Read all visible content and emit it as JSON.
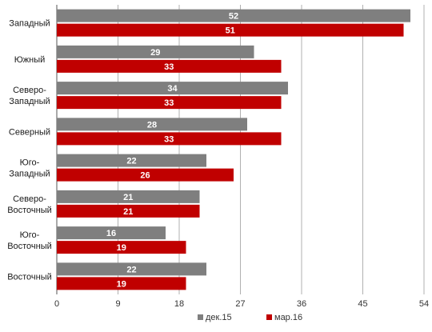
{
  "chart_data": {
    "type": "bar",
    "orientation": "horizontal",
    "categories": [
      [
        "Западный"
      ],
      [
        "Южный"
      ],
      [
        "Северо-",
        "Западный"
      ],
      [
        "Северный"
      ],
      [
        "Юго-",
        "Западный"
      ],
      [
        "Северо-",
        "Восточный"
      ],
      [
        "Юго-",
        "Восточный"
      ],
      [
        "Восточный"
      ]
    ],
    "series": [
      {
        "name": "дек.15",
        "color": "#7f7f7f",
        "values": [
          52,
          29,
          34,
          28,
          22,
          21,
          16,
          22
        ]
      },
      {
        "name": "мар.16",
        "color": "#c00000",
        "values": [
          51,
          33,
          33,
          33,
          26,
          21,
          19,
          19
        ]
      }
    ],
    "xlim": [
      0,
      54
    ],
    "xticks": [
      0,
      9,
      18,
      27,
      36,
      45,
      54
    ],
    "grid": true,
    "legend_position": "bottom",
    "data_labels": true
  }
}
